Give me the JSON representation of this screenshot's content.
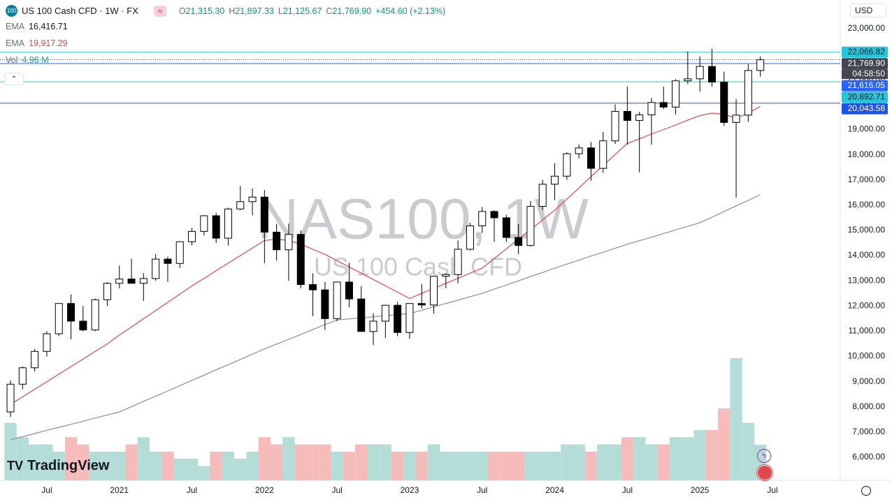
{
  "chart_data": {
    "type": "candlestick",
    "title": "NAS100, 1W",
    "subtitle": "US 100 Cash CFD",
    "symbol_badge": "100",
    "symbol": "US 100 Cash CFD · 1W · FX",
    "ohlc_labels": [
      {
        "key": "O",
        "value": "21,315.30"
      },
      {
        "key": "H",
        "value": "21,897.33"
      },
      {
        "key": "L",
        "value": "21,125.67"
      },
      {
        "key": "C",
        "value": "21,769.90"
      }
    ],
    "change": "+454.60 (+2.13%)",
    "currency": "USD",
    "brand": "TradingView",
    "countdown": "04:58:50",
    "up_color": "#ffffff",
    "down_color": "#000000",
    "open": [
      7800,
      8900,
      9550,
      10200,
      10900,
      12100,
      11400,
      11050,
      12250,
      12900,
      13070,
      12900,
      13090,
      13860,
      13690,
      14550,
      14960,
      15580,
      14690,
      15850,
      16140,
      16320,
      14930,
      14230,
      14840,
      12850,
      12640,
      11500,
      12950,
      12280,
      10990,
      11400,
      12030,
      10950,
      12100,
      12040,
      13180,
      13250,
      14250,
      15180,
      15750,
      15500,
      14720,
      14400,
      15950,
      16830,
      17150,
      18040,
      18270,
      17460,
      18550,
      19720,
      19360,
      19580,
      20070,
      19890,
      20930,
      21010,
      21500,
      20880,
      19280,
      19570,
      21340
    ],
    "high": [
      9050,
      9600,
      10300,
      11000,
      12100,
      12460,
      12000,
      12300,
      12950,
      13600,
      13880,
      13300,
      14060,
      13960,
      14570,
      15100,
      15600,
      15700,
      15900,
      16760,
      16660,
      16600,
      15260,
      15270,
      15000,
      13300,
      12950,
      12950,
      13720,
      12790,
      11710,
      12050,
      12170,
      12100,
      12880,
      13200,
      13300,
      14600,
      15300,
      15930,
      15800,
      15620,
      15250,
      16170,
      17000,
      17660,
      18100,
      18400,
      18500,
      18900,
      20000,
      20700,
      19700,
      20250,
      20700,
      21000,
      22100,
      21900,
      22200,
      21300,
      20200,
      21600,
      21900
    ],
    "low": [
      7600,
      8700,
      9400,
      10000,
      10800,
      10680,
      11000,
      11000,
      12000,
      12700,
      12900,
      12200,
      13000,
      12960,
      13500,
      14400,
      14800,
      14500,
      14400,
      15800,
      15600,
      13700,
      13800,
      13000,
      12700,
      11600,
      11050,
      11400,
      11950,
      10990,
      10450,
      10730,
      10800,
      10700,
      11900,
      11700,
      12700,
      12900,
      14200,
      14900,
      14550,
      14540,
      14050,
      14350,
      15800,
      16200,
      17000,
      17850,
      16970,
      17280,
      18430,
      18400,
      17300,
      18400,
      19800,
      19600,
      20800,
      20500,
      20700,
      19150,
      16300,
      19300,
      21100
    ],
    "close": [
      8900,
      9550,
      10200,
      10900,
      12100,
      11400,
      11050,
      12250,
      12900,
      13070,
      12900,
      13090,
      13860,
      13690,
      14550,
      14960,
      15580,
      14690,
      15850,
      16140,
      16320,
      14930,
      14230,
      14840,
      12850,
      12640,
      11500,
      12950,
      12280,
      10990,
      11400,
      12030,
      10950,
      12100,
      12040,
      13180,
      13250,
      14250,
      15180,
      15750,
      15500,
      14720,
      14400,
      15950,
      16830,
      17150,
      18040,
      18270,
      17460,
      18550,
      19720,
      19360,
      19580,
      20070,
      19890,
      20930,
      21010,
      21500,
      20880,
      19280,
      19570,
      21340,
      21770
    ],
    "series": [
      {
        "name": "EMA",
        "color": "#8a8d96",
        "value_label": "16,416.71",
        "label_color": "#131722",
        "values": [
          6700,
          6820,
          6940,
          7070,
          7190,
          7310,
          7430,
          7560,
          7680,
          7800,
          8010,
          8220,
          8420,
          8630,
          8840,
          9050,
          9260,
          9470,
          9670,
          9880,
          10090,
          10300,
          10490,
          10680,
          10870,
          11070,
          11260,
          11450,
          11490,
          11530,
          11570,
          11620,
          11660,
          11700,
          11830,
          11970,
          12100,
          12230,
          12370,
          12500,
          12670,
          12830,
          13000,
          13170,
          13330,
          13500,
          13660,
          13820,
          13980,
          14130,
          14290,
          14450,
          14590,
          14730,
          14870,
          15020,
          15160,
          15300,
          15520,
          15750,
          15970,
          16190,
          16416.71
        ]
      },
      {
        "name": "EMA",
        "color": "#e0474c",
        "value_label": "19,917.29",
        "label_color": "#e0474c",
        "values": [
          8100,
          8400,
          8700,
          9000,
          9300,
          9600,
          9900,
          10200,
          10500,
          10850,
          11170,
          11500,
          11820,
          12150,
          12470,
          12800,
          13100,
          13400,
          13700,
          14000,
          14300,
          14600,
          14650,
          14600,
          14450,
          14250,
          14050,
          13800,
          13550,
          13300,
          13050,
          12800,
          12550,
          12300,
          12500,
          12700,
          12900,
          13100,
          13300,
          13500,
          13880,
          14270,
          14650,
          15030,
          15420,
          15800,
          16240,
          16680,
          17130,
          17570,
          18010,
          18450,
          18630,
          18820,
          19000,
          19180,
          19370,
          19550,
          19650,
          19600,
          19450,
          19650,
          19917.29
        ]
      }
    ],
    "volume": {
      "name": "Vol",
      "value_label": "4.96 M",
      "label_color": "#22a39a",
      "up_color": "#b4ddd8",
      "down_color": "#f6bcbc",
      "values": [
        8,
        6,
        5,
        5,
        4,
        6,
        5,
        4,
        4,
        4,
        5,
        6,
        4,
        4,
        3,
        3,
        2,
        4,
        4,
        3,
        4,
        6,
        5,
        6,
        5,
        5,
        5,
        4,
        4,
        5,
        5,
        5,
        4,
        4,
        4,
        5,
        4,
        4,
        4,
        4,
        4,
        4,
        4,
        4,
        4,
        4,
        5,
        5,
        4,
        5,
        5,
        6,
        6,
        5,
        5,
        6,
        6,
        7,
        7,
        10,
        17,
        8,
        4.96
      ]
    },
    "xlim": [
      -0.87,
      68.61
    ],
    "xticks": [
      {
        "value": 3,
        "label": "Jul"
      },
      {
        "value": 9,
        "label": "2021"
      },
      {
        "value": 15,
        "label": "Jul"
      },
      {
        "value": 21,
        "label": "2022"
      },
      {
        "value": 27,
        "label": "Jul"
      },
      {
        "value": 33,
        "label": "2023"
      },
      {
        "value": 39,
        "label": "Jul"
      },
      {
        "value": 45,
        "label": "2024"
      },
      {
        "value": 51,
        "label": "Jul"
      },
      {
        "value": 57,
        "label": "2025"
      },
      {
        "value": 63,
        "label": "Jul"
      }
    ],
    "ylim": [
      5086,
      24136
    ],
    "yticks": [
      {
        "value": 6000,
        "label": "6,000.00"
      },
      {
        "value": 7000,
        "label": "7,000.00"
      },
      {
        "value": 8000,
        "label": "8,000.00"
      },
      {
        "value": 9000,
        "label": "9,000.00"
      },
      {
        "value": 10000,
        "label": "10,000.00"
      },
      {
        "value": 11000,
        "label": "11,000.00"
      },
      {
        "value": 12000,
        "label": "12,000.00"
      },
      {
        "value": 13000,
        "label": "13,000.00"
      },
      {
        "value": 14000,
        "label": "14,000.00"
      },
      {
        "value": 15000,
        "label": "15,000.00"
      },
      {
        "value": 16000,
        "label": "16,000.00"
      },
      {
        "value": 17000,
        "label": "17,000.00"
      },
      {
        "value": 18000,
        "label": "18,000.00"
      },
      {
        "value": 19000,
        "label": "19,000.00"
      },
      {
        "value": 20000,
        "label": "20,000.00"
      },
      {
        "value": 21000,
        "label": "21,000.00"
      },
      {
        "value": 22000,
        "label": "22,000.00"
      },
      {
        "value": 23000,
        "label": "23,000.00"
      }
    ],
    "levels": [
      {
        "value": 22066.82,
        "label": "22,066.82",
        "color": "#26c6da",
        "text_color": "#131722",
        "dash": false
      },
      {
        "value": 21769.9,
        "label": "21,769.90",
        "color": "#434651",
        "text_color": "#ffffff",
        "dash": true
      },
      {
        "value": 21616.05,
        "label": "21,616.05",
        "color": "#2962ff",
        "text_color": "#ffffff",
        "dash": false
      },
      {
        "value": 20892.71,
        "label": "20,892.71",
        "color": "#26c6da",
        "text_color": "#131722",
        "dash": false
      },
      {
        "value": 20043.58,
        "label": "20,043.58",
        "color": "#1e53e5",
        "text_color": "#ffffff",
        "dash": false
      }
    ]
  }
}
